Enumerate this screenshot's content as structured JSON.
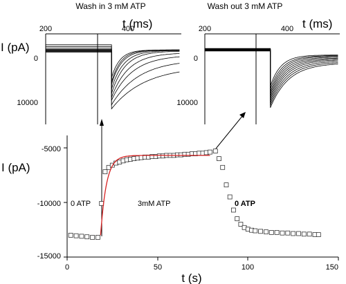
{
  "chart_data": [
    {
      "id": "inset-left",
      "type": "line",
      "title": "Wash in 3 mM ATP",
      "xlabel": "t (ms)",
      "ylabel": "I (pA)",
      "xlim": [
        200,
        520
      ],
      "ylim": [
        -2000,
        13000
      ],
      "y_inverted": true,
      "xticks": [
        200,
        400
      ],
      "yticks": [
        0,
        10000
      ],
      "step_time": 357,
      "series": [
        {
          "baseline": 500,
          "peak": 5000,
          "tau": 20,
          "final": 100
        },
        {
          "baseline": 400,
          "peak": 5800,
          "tau": 22,
          "final": 100
        },
        {
          "baseline": 300,
          "peak": 6200,
          "tau": 24,
          "final": 150
        },
        {
          "baseline": 200,
          "peak": 7000,
          "tau": 28,
          "final": 200
        },
        {
          "baseline": 100,
          "peak": 7800,
          "tau": 32,
          "final": 300
        },
        {
          "baseline": 0,
          "peak": 8500,
          "tau": 40,
          "final": 600
        },
        {
          "baseline": -200,
          "peak": 9000,
          "tau": 50,
          "final": 1000
        },
        {
          "baseline": -500,
          "peak": 9800,
          "tau": 65,
          "final": 1800
        },
        {
          "baseline": -800,
          "peak": 10500,
          "tau": 80,
          "final": 3000
        }
      ]
    },
    {
      "id": "inset-right",
      "type": "line",
      "title": "Wash out 3 mM ATP",
      "xlabel": "t (ms)",
      "ylabel": "",
      "xlim": [
        200,
        520
      ],
      "ylim": [
        -2000,
        13000
      ],
      "y_inverted": true,
      "xticks": [
        200,
        400
      ],
      "yticks": [
        0,
        10000
      ],
      "step_time": 357,
      "series": [
        {
          "baseline": 300,
          "peak": 6500,
          "tau": 25,
          "final": 1000
        },
        {
          "baseline": 250,
          "peak": 7000,
          "tau": 28,
          "final": 1100
        },
        {
          "baseline": 200,
          "peak": 7500,
          "tau": 30,
          "final": 1200
        },
        {
          "baseline": 150,
          "peak": 7900,
          "tau": 32,
          "final": 1350
        },
        {
          "baseline": 100,
          "peak": 8300,
          "tau": 34,
          "final": 1500
        },
        {
          "baseline": 50,
          "peak": 8700,
          "tau": 36,
          "final": 1650
        },
        {
          "baseline": 0,
          "peak": 9100,
          "tau": 38,
          "final": 1800
        },
        {
          "baseline": -50,
          "peak": 9500,
          "tau": 40,
          "final": 2000
        },
        {
          "baseline": -100,
          "peak": 9900,
          "tau": 42,
          "final": 2200
        },
        {
          "baseline": -150,
          "peak": 10300,
          "tau": 44,
          "final": 2400
        }
      ]
    },
    {
      "id": "main",
      "type": "scatter",
      "xlabel": "t (s)",
      "ylabel": "I (pA)",
      "xlim": [
        0,
        150
      ],
      "ylim": [
        -15000,
        -4000
      ],
      "xticks": [
        0,
        50,
        100,
        150
      ],
      "yticks": [
        -5000,
        -10000,
        -15000
      ],
      "annotations": [
        "0 ATP",
        "3mM ATP",
        "0 ATP"
      ],
      "points": [
        [
          2,
          -13000
        ],
        [
          5,
          -13050
        ],
        [
          8,
          -13100
        ],
        [
          11,
          -13150
        ],
        [
          14,
          -13200
        ],
        [
          17,
          -13200
        ],
        [
          19,
          -10100
        ],
        [
          21,
          -7200
        ],
        [
          23,
          -6800
        ],
        [
          25,
          -6600
        ],
        [
          27,
          -6400
        ],
        [
          29,
          -6300
        ],
        [
          31,
          -6200
        ],
        [
          33,
          -6100
        ],
        [
          35,
          -6050
        ],
        [
          37,
          -6000
        ],
        [
          39,
          -5950
        ],
        [
          41,
          -5900
        ],
        [
          43,
          -5850
        ],
        [
          45,
          -5850
        ],
        [
          47,
          -5800
        ],
        [
          49,
          -5800
        ],
        [
          51,
          -5750
        ],
        [
          53,
          -5750
        ],
        [
          55,
          -5700
        ],
        [
          57,
          -5700
        ],
        [
          59,
          -5700
        ],
        [
          61,
          -5650
        ],
        [
          63,
          -5650
        ],
        [
          65,
          -5600
        ],
        [
          67,
          -5600
        ],
        [
          69,
          -5550
        ],
        [
          71,
          -5550
        ],
        [
          73,
          -5500
        ],
        [
          75,
          -5500
        ],
        [
          77,
          -5450
        ],
        [
          79,
          -5400
        ],
        [
          82,
          -5300
        ],
        [
          84,
          -6000
        ],
        [
          86,
          -6800
        ],
        [
          88,
          -8400
        ],
        [
          90,
          -9500
        ],
        [
          92,
          -10700
        ],
        [
          94,
          -11500
        ],
        [
          96,
          -12000
        ],
        [
          98,
          -12300
        ],
        [
          100,
          -12450
        ],
        [
          102,
          -12550
        ],
        [
          104,
          -12600
        ],
        [
          107,
          -12650
        ],
        [
          110,
          -12700
        ],
        [
          113,
          -12750
        ],
        [
          116,
          -12750
        ],
        [
          119,
          -12800
        ],
        [
          122,
          -12800
        ],
        [
          125,
          -12850
        ],
        [
          128,
          -12850
        ],
        [
          131,
          -12900
        ],
        [
          134,
          -12900
        ],
        [
          137,
          -12950
        ],
        [
          139,
          -12950
        ]
      ],
      "fit": {
        "t0": 18.5,
        "start": -13000,
        "end": -5700,
        "tau": 3.2,
        "color": "#d62020"
      }
    }
  ]
}
